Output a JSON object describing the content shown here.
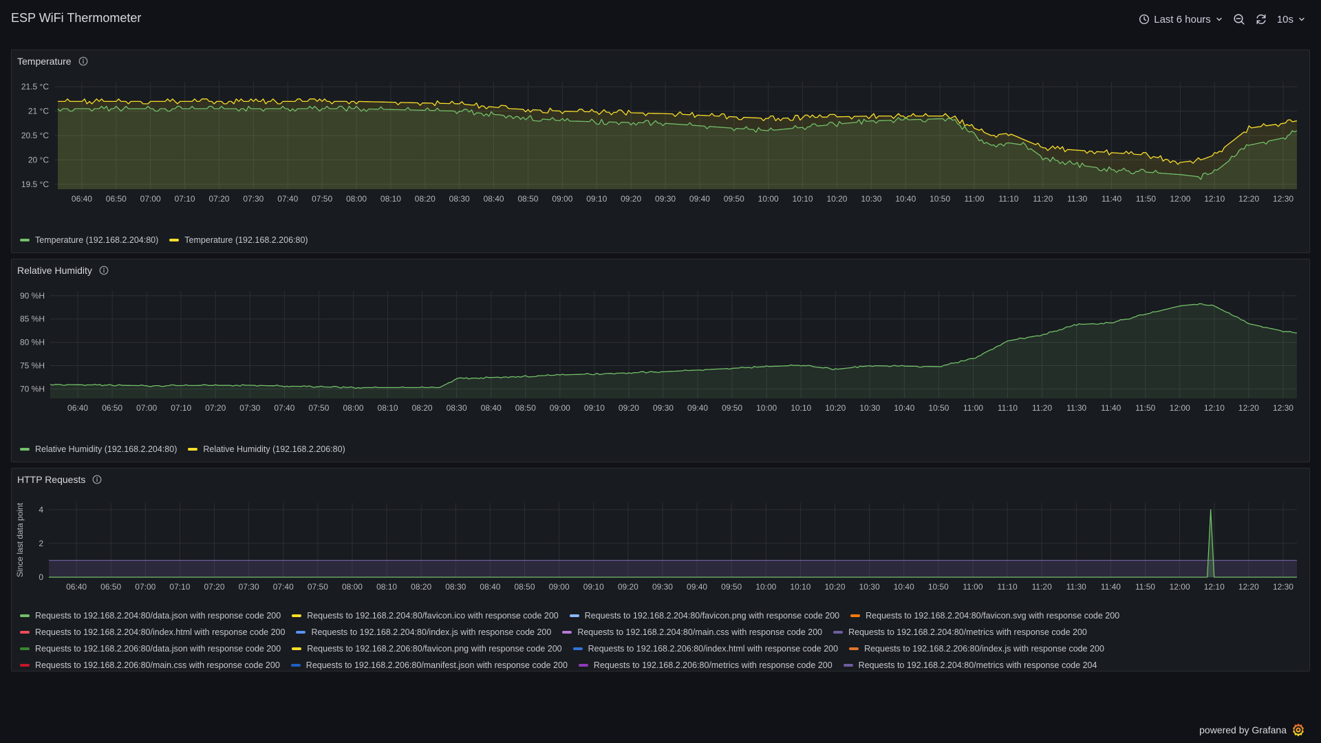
{
  "dashboard": {
    "title": "ESP WiFi Thermometer",
    "time_range_label": "Last 6 hours",
    "refresh_label": "10s",
    "footer_text": "powered by Grafana"
  },
  "x_ticks": [
    "06:40",
    "06:50",
    "07:00",
    "07:10",
    "07:20",
    "07:30",
    "07:40",
    "07:50",
    "08:00",
    "08:10",
    "08:20",
    "08:30",
    "08:40",
    "08:50",
    "09:00",
    "09:10",
    "09:20",
    "09:30",
    "09:40",
    "09:50",
    "10:00",
    "10:10",
    "10:20",
    "10:30",
    "10:40",
    "10:50",
    "11:00",
    "11:10",
    "11:20",
    "11:30",
    "11:40",
    "11:50",
    "12:00",
    "12:10",
    "12:20",
    "12:30"
  ],
  "panels": {
    "temperature": {
      "title": "Temperature",
      "y_tick_labels": [
        "21.5 °C",
        "21 °C",
        "20.5 °C",
        "20 °C",
        "19.5 °C"
      ],
      "legend": [
        {
          "label": "Temperature (192.168.2.204:80)",
          "color": "#73bf69"
        },
        {
          "label": "Temperature (192.168.2.206:80)",
          "color": "#fade2a"
        }
      ]
    },
    "humidity": {
      "title": "Relative Humidity",
      "y_tick_labels": [
        "90 %H",
        "85 %H",
        "80 %H",
        "75 %H",
        "70 %H"
      ],
      "legend": [
        {
          "label": "Relative Humidity (192.168.2.204:80)",
          "color": "#73bf69"
        },
        {
          "label": "Relative Humidity (192.168.2.206:80)",
          "color": "#fade2a"
        }
      ]
    },
    "http": {
      "title": "HTTP Requests",
      "y_axis_label": "Since last data point",
      "y_tick_labels": [
        "4",
        "2",
        "0"
      ],
      "legend_rows": [
        [
          {
            "label": "Requests to 192.168.2.204:80/data.json with response code 200",
            "color": "#73bf69"
          },
          {
            "label": "Requests to 192.168.2.204:80/favicon.ico with response code 200",
            "color": "#fade2a"
          },
          {
            "label": "Requests to 192.168.2.204:80/favicon.png with response code 200",
            "color": "#8ab8ff"
          },
          {
            "label": "Requests to 192.168.2.204:80/favicon.svg with response code 200",
            "color": "#ff780a"
          }
        ],
        [
          {
            "label": "Requests to 192.168.2.204:80/index.html with response code 200",
            "color": "#f2495c"
          },
          {
            "label": "Requests to 192.168.2.204:80/index.js with response code 200",
            "color": "#5794f2"
          },
          {
            "label": "Requests to 192.168.2.204:80/main.css with response code 200",
            "color": "#b877d9"
          },
          {
            "label": "Requests to 192.168.2.204:80/metrics with response code 200",
            "color": "#705da0"
          }
        ],
        [
          {
            "label": "Requests to 192.168.2.206:80/data.json with response code 200",
            "color": "#37872d"
          },
          {
            "label": "Requests to 192.168.2.206:80/favicon.png with response code 200",
            "color": "#fade2a"
          },
          {
            "label": "Requests to 192.168.2.206:80/index.html with response code 200",
            "color": "#3274d9"
          },
          {
            "label": "Requests to 192.168.2.206:80/index.js with response code 200",
            "color": "#e0752d"
          }
        ],
        [
          {
            "label": "Requests to 192.168.2.206:80/main.css with response code 200",
            "color": "#c4162a"
          },
          {
            "label": "Requests to 192.168.2.206:80/manifest.json with response code 200",
            "color": "#1f60c4"
          },
          {
            "label": "Requests to 192.168.2.206:80/metrics with response code 200",
            "color": "#8f3bb8"
          },
          {
            "label": "Requests to 192.168.2.204:80/metrics with response code 204",
            "color": "#705da0"
          }
        ]
      ]
    }
  },
  "chart_data": [
    {
      "type": "line",
      "title": "Temperature",
      "x": [
        "06:33",
        "06:50",
        "07:30",
        "08:00",
        "08:30",
        "08:45",
        "09:00",
        "09:30",
        "10:00",
        "10:30",
        "10:53",
        "11:00",
        "11:05",
        "11:10",
        "11:15",
        "11:20",
        "11:30",
        "11:40",
        "11:50",
        "12:00",
        "12:06",
        "12:10",
        "12:20",
        "12:30",
        "12:34"
      ],
      "ylim": [
        19.4,
        21.6
      ],
      "series": [
        {
          "name": "Temperature (192.168.2.204:80)",
          "values": [
            21.05,
            21.05,
            21.05,
            21.05,
            21.0,
            20.9,
            20.8,
            20.75,
            20.6,
            20.8,
            20.85,
            20.5,
            20.3,
            20.35,
            20.3,
            20.05,
            19.9,
            19.8,
            19.75,
            19.7,
            19.65,
            19.75,
            20.3,
            20.45,
            20.6
          ]
        },
        {
          "name": "Temperature (192.168.2.206:80)",
          "values": [
            21.2,
            21.2,
            21.2,
            21.2,
            21.15,
            21.05,
            21.0,
            20.95,
            20.85,
            20.9,
            20.9,
            20.65,
            20.5,
            20.55,
            20.4,
            20.25,
            20.2,
            20.15,
            20.1,
            19.95,
            20.0,
            20.1,
            20.65,
            20.75,
            20.8
          ]
        }
      ]
    },
    {
      "type": "line",
      "title": "Relative Humidity",
      "x": [
        "06:32",
        "07:00",
        "07:30",
        "08:00",
        "08:25",
        "08:30",
        "09:00",
        "09:30",
        "10:00",
        "10:10",
        "10:20",
        "10:30",
        "10:50",
        "11:00",
        "11:10",
        "11:20",
        "11:30",
        "11:40",
        "11:50",
        "12:00",
        "12:05",
        "12:10",
        "12:20",
        "12:30",
        "12:34"
      ],
      "ylim": [
        68,
        91
      ],
      "series": [
        {
          "name": "Relative Humidity (192.168.2.204:80)",
          "values": [
            71.0,
            70.7,
            70.8,
            70.3,
            70.3,
            72.2,
            73.0,
            73.7,
            74.8,
            75.1,
            74.2,
            75.0,
            74.8,
            76.5,
            80.3,
            81.6,
            83.8,
            84.2,
            86.0,
            87.8,
            88.2,
            87.8,
            84.0,
            82.4,
            82.0
          ]
        }
      ]
    },
    {
      "type": "line",
      "title": "HTTP Requests",
      "ylabel": "Since last data point",
      "x": [
        "06:32",
        "12:08",
        "12:09",
        "12:10",
        "12:34"
      ],
      "ylim": [
        0,
        4.4
      ],
      "series": [
        {
          "name": "Requests to 192.168.2.204:80/data.json with response code 200",
          "values": [
            0,
            0,
            4,
            0,
            0
          ]
        },
        {
          "name": "Requests to 192.168.2.204:80/metrics with response code 200",
          "values": [
            1,
            1,
            1,
            1,
            1
          ]
        }
      ]
    }
  ]
}
